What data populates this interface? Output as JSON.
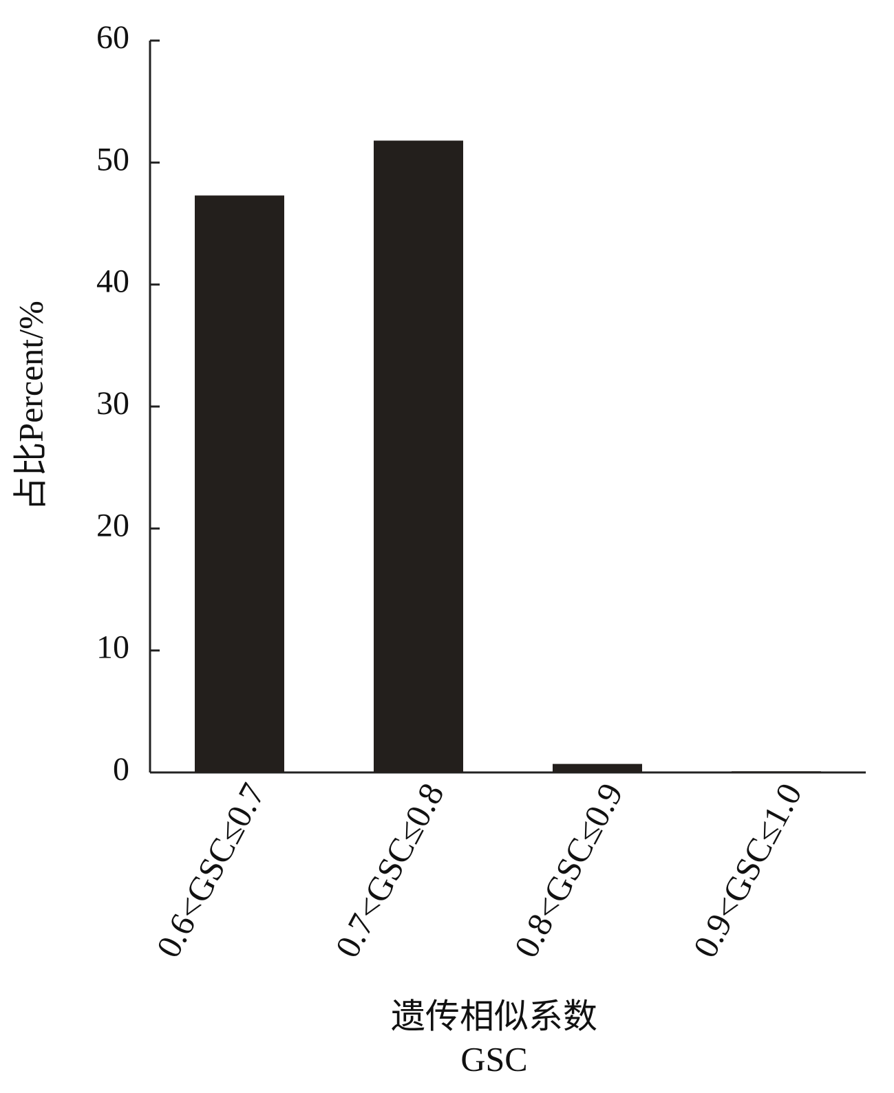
{
  "chart_data": {
    "type": "bar",
    "ylabel": "占比Percent/%",
    "xlabel": [
      "遗传相似系数",
      "GSC"
    ],
    "categories": [
      "0.6<GSC≤0.7",
      "0.7<GSC≤0.8",
      "0.8<GSC≤0.9",
      "0.9<GSC≤1.0"
    ],
    "values": [
      47.3,
      51.8,
      0.7,
      0.1
    ],
    "color": "#231f1c",
    "ylim": [
      0,
      60
    ],
    "yticks": [
      0,
      10,
      20,
      30,
      40,
      50,
      60
    ],
    "grid": false
  }
}
